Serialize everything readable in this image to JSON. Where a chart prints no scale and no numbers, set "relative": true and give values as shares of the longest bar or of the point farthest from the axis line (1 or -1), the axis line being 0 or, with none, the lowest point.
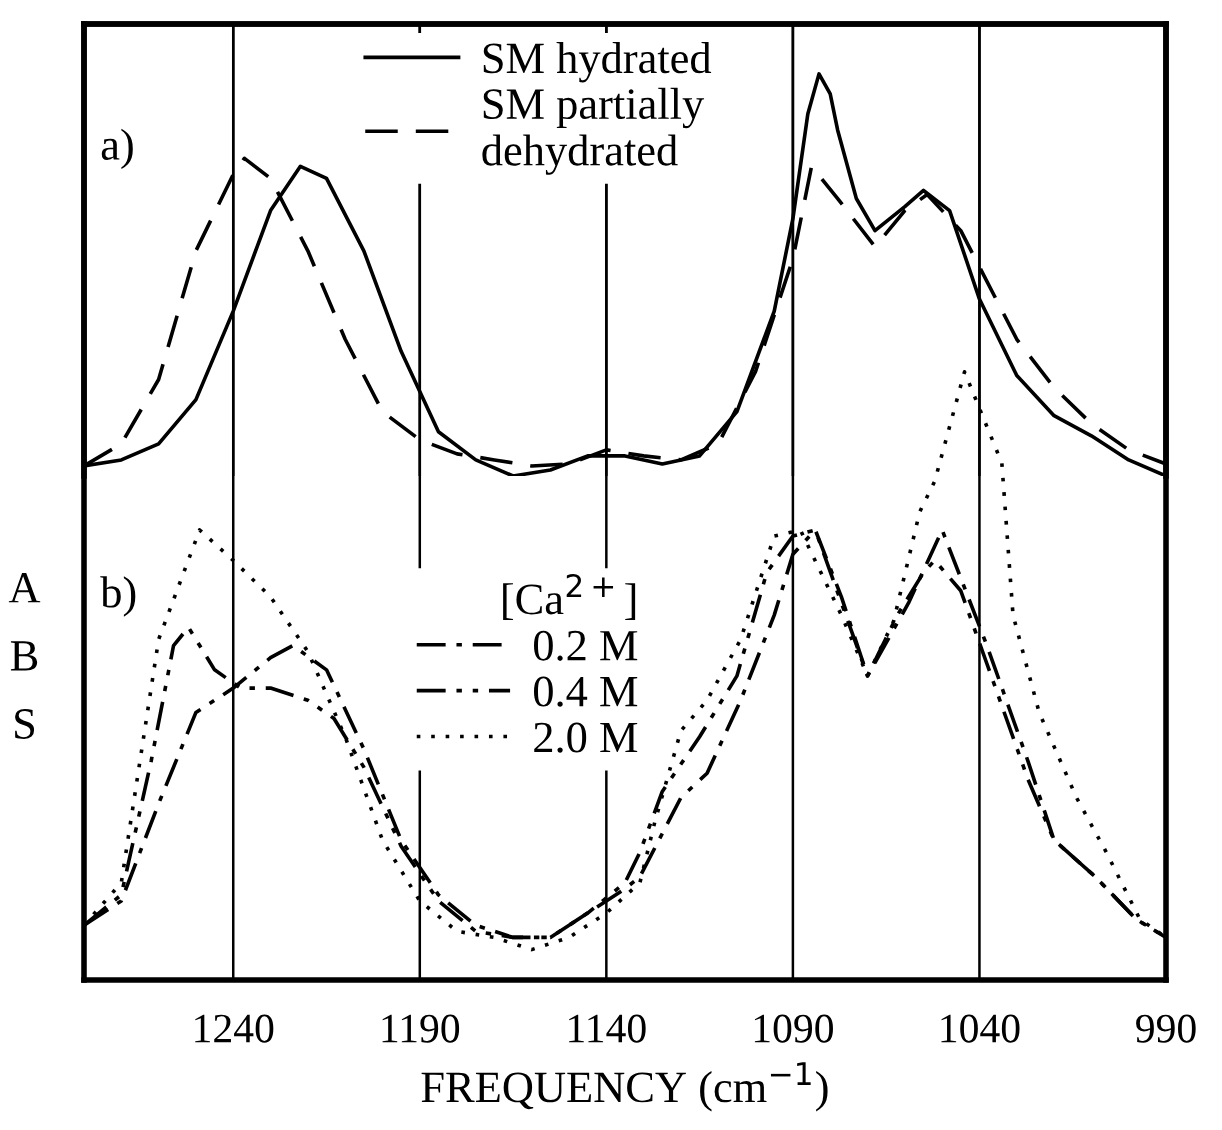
{
  "chart_data": [
    {
      "type": "line",
      "relative": true,
      "xlim": [
        1280,
        990
      ],
      "xticks": [
        1240,
        1190,
        1140,
        1090,
        1040,
        990
      ],
      "tick_labels": false,
      "grid": "x",
      "legend": "top",
      "annotations": [
        "a)"
      ],
      "series": [
        {
          "name": "SM hydrated",
          "color": "#000000",
          "line_style": "solid",
          "x": [
            1280,
            1270,
            1260,
            1250,
            1240,
            1230,
            1222,
            1215,
            1205,
            1195,
            1185,
            1175,
            1165,
            1155,
            1145,
            1135,
            1125,
            1115,
            1105,
            1095,
            1090,
            1086,
            1083,
            1080,
            1078,
            1073,
            1068,
            1060,
            1055,
            1048,
            1040,
            1030,
            1020,
            1010,
            1000,
            990
          ],
          "values": [
            0.025,
            0.04,
            0.08,
            0.19,
            0.41,
            0.66,
            0.77,
            0.74,
            0.56,
            0.31,
            0.11,
            0.04,
            0.0,
            0.015,
            0.05,
            0.05,
            0.03,
            0.05,
            0.16,
            0.41,
            0.64,
            0.9,
            1.0,
            0.95,
            0.86,
            0.69,
            0.61,
            0.67,
            0.71,
            0.66,
            0.44,
            0.25,
            0.15,
            0.1,
            0.04,
            0.0
          ]
        },
        {
          "name": "SM partially\ndehydrated",
          "color": "#000000",
          "line_style": "dashed",
          "x": [
            1280,
            1270,
            1260,
            1250,
            1240,
            1237,
            1230,
            1220,
            1210,
            1200,
            1190,
            1180,
            1170,
            1160,
            1150,
            1140,
            1130,
            1120,
            1110,
            1100,
            1090,
            1085,
            1078,
            1068,
            1060,
            1054,
            1045,
            1040,
            1030,
            1020,
            1010,
            1000,
            990
          ],
          "values": [
            0.025,
            0.08,
            0.24,
            0.56,
            0.75,
            0.79,
            0.74,
            0.56,
            0.34,
            0.16,
            0.09,
            0.055,
            0.04,
            0.025,
            0.03,
            0.065,
            0.05,
            0.04,
            0.08,
            0.26,
            0.54,
            0.77,
            0.69,
            0.57,
            0.66,
            0.7,
            0.61,
            0.52,
            0.34,
            0.22,
            0.13,
            0.065,
            0.03
          ]
        }
      ]
    },
    {
      "type": "line",
      "relative": true,
      "xlim": [
        1280,
        990
      ],
      "xticks": [
        1240,
        1190,
        1140,
        1090,
        1040,
        990
      ],
      "tick_labels": "x",
      "grid": "x",
      "legend": "bottom left",
      "legend_title": "[Ca$^{2+}$]",
      "xlabel": "FREQUENCY (cm$^{−1}$)",
      "ylabel": "ABS",
      "annotations": [
        "b)"
      ],
      "series": [
        {
          "name": "0.2 M",
          "color": "#000000",
          "line_style": "dashdot",
          "x": [
            1280,
            1270,
            1260,
            1250,
            1240,
            1230,
            1224,
            1215,
            1205,
            1195,
            1185,
            1175,
            1165,
            1155,
            1145,
            1135,
            1131,
            1120,
            1113,
            1104,
            1095,
            1090,
            1084,
            1077,
            1070,
            1059,
            1050,
            1038,
            1027,
            1020,
            1009,
            998,
            990
          ],
          "values": [
            0.09,
            0.13,
            0.29,
            0.44,
            0.48,
            0.53,
            0.55,
            0.51,
            0.38,
            0.23,
            0.14,
            0.09,
            0.07,
            0.07,
            0.11,
            0.15,
            0.17,
            0.3,
            0.34,
            0.46,
            0.6,
            0.7,
            0.74,
            0.63,
            0.5,
            0.62,
            0.74,
            0.55,
            0.36,
            0.23,
            0.17,
            0.1,
            0.07
          ]
        },
        {
          "name": "0.4 M",
          "color": "#000000",
          "line_style": "dashdotdot",
          "x": [
            1280,
            1270,
            1262,
            1256,
            1252,
            1245,
            1238,
            1230,
            1220,
            1213,
            1205,
            1195,
            1185,
            1175,
            1165,
            1155,
            1145,
            1135,
            1131,
            1125,
            1115,
            1105,
            1097,
            1090,
            1084,
            1077,
            1070,
            1062,
            1055,
            1052,
            1045,
            1038,
            1027,
            1020,
            1009,
            998,
            990
          ],
          "values": [
            0.09,
            0.14,
            0.36,
            0.55,
            0.58,
            0.51,
            0.48,
            0.48,
            0.46,
            0.43,
            0.35,
            0.22,
            0.13,
            0.08,
            0.07,
            0.07,
            0.11,
            0.16,
            0.21,
            0.31,
            0.4,
            0.5,
            0.67,
            0.73,
            0.74,
            0.62,
            0.5,
            0.6,
            0.67,
            0.69,
            0.64,
            0.52,
            0.33,
            0.23,
            0.17,
            0.1,
            0.07
          ]
        },
        {
          "name": "2.0 M",
          "color": "#000000",
          "line_style": "dotted",
          "x": [
            1280,
            1270,
            1260,
            1249,
            1240,
            1230,
            1220,
            1210,
            1200,
            1190,
            1180,
            1170,
            1160,
            1150,
            1140,
            1131,
            1127,
            1120,
            1113,
            1104,
            1095,
            1088,
            1077,
            1070,
            1063,
            1056,
            1052,
            1044,
            1034,
            1031,
            1024,
            1014,
            1006,
            997,
            990
          ],
          "values": [
            0.09,
            0.16,
            0.56,
            0.74,
            0.69,
            0.63,
            0.54,
            0.4,
            0.23,
            0.13,
            0.08,
            0.07,
            0.05,
            0.07,
            0.11,
            0.16,
            0.26,
            0.41,
            0.46,
            0.56,
            0.73,
            0.74,
            0.6,
            0.5,
            0.59,
            0.77,
            0.82,
            1.0,
            0.85,
            0.6,
            0.44,
            0.3,
            0.21,
            0.1,
            0.07
          ]
        }
      ]
    }
  ]
}
